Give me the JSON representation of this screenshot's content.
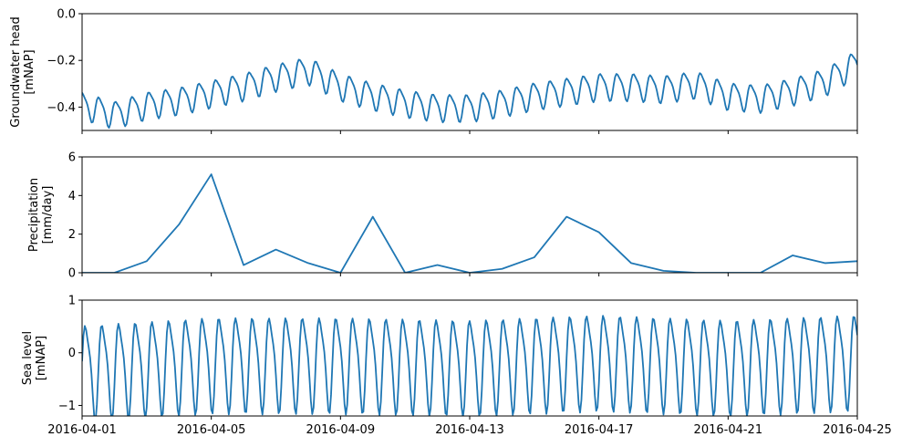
{
  "x_ticks": [
    "2016-04-01",
    "2016-04-05",
    "2016-04-09",
    "2016-04-13",
    "2016-04-17",
    "2016-04-21",
    "2016-04-25"
  ],
  "chart_data": [
    {
      "type": "line",
      "name": "groundwater",
      "ylabel_lines": [
        "Groundwater head",
        "[mNAP]"
      ],
      "xlim": [
        "2016-04-01",
        "2016-04-25"
      ],
      "ylim": [
        -0.5,
        0.0
      ],
      "yticks": [
        0.0,
        -0.2,
        -0.4
      ],
      "ytick_labels": [
        "0.0",
        "−0.2",
        "−0.4"
      ],
      "color": "#1f77b4",
      "tidal_model": {
        "period_hours": 12.42,
        "amplitude": 0.055,
        "samples_per_day": 24,
        "phase_offset": 1.2,
        "mean_curve": {
          "dates": [
            "2016-04-01",
            "2016-04-02",
            "2016-04-03",
            "2016-04-04",
            "2016-04-05",
            "2016-04-06",
            "2016-04-07",
            "2016-04-08",
            "2016-04-09",
            "2016-04-10",
            "2016-04-11",
            "2016-04-12",
            "2016-04-13",
            "2016-04-14",
            "2016-04-15",
            "2016-04-16",
            "2016-04-17",
            "2016-04-18",
            "2016-04-19",
            "2016-04-20",
            "2016-04-21",
            "2016-04-22",
            "2016-04-23",
            "2016-04-24",
            "2016-04-25"
          ],
          "values": [
            -0.39,
            -0.43,
            -0.39,
            -0.37,
            -0.34,
            -0.31,
            -0.27,
            -0.24,
            -0.31,
            -0.35,
            -0.38,
            -0.4,
            -0.4,
            -0.38,
            -0.35,
            -0.33,
            -0.31,
            -0.31,
            -0.32,
            -0.3,
            -0.35,
            -0.36,
            -0.33,
            -0.29,
            -0.21
          ]
        }
      }
    },
    {
      "type": "line",
      "name": "precipitation",
      "ylabel_lines": [
        "Precipitation",
        "[mm/day]"
      ],
      "xlim": [
        "2016-04-01",
        "2016-04-25"
      ],
      "ylim": [
        0,
        6
      ],
      "yticks": [
        0,
        2,
        4,
        6
      ],
      "ytick_labels": [
        "0",
        "2",
        "4",
        "6"
      ],
      "color": "#1f77b4",
      "x": [
        "2016-04-01",
        "2016-04-02",
        "2016-04-03",
        "2016-04-04",
        "2016-04-05",
        "2016-04-06",
        "2016-04-07",
        "2016-04-08",
        "2016-04-09",
        "2016-04-10",
        "2016-04-11",
        "2016-04-12",
        "2016-04-13",
        "2016-04-14",
        "2016-04-15",
        "2016-04-16",
        "2016-04-17",
        "2016-04-18",
        "2016-04-19",
        "2016-04-20",
        "2016-04-21",
        "2016-04-22",
        "2016-04-23",
        "2016-04-24",
        "2016-04-25"
      ],
      "values": [
        0.0,
        0.0,
        0.6,
        2.5,
        5.1,
        0.4,
        1.2,
        0.5,
        0.0,
        2.9,
        0.0,
        0.4,
        0.0,
        0.2,
        0.8,
        2.9,
        2.1,
        0.5,
        0.1,
        0.0,
        0.0,
        0.0,
        0.9,
        0.5,
        0.6
      ]
    },
    {
      "type": "line",
      "name": "sea_level",
      "ylabel_lines": [
        "Sea level",
        "[mNAP]"
      ],
      "xlim": [
        "2016-04-01",
        "2016-04-25"
      ],
      "ylim": [
        -1.2,
        1.0
      ],
      "yticks": [
        1,
        0,
        -1
      ],
      "ytick_labels": [
        "1",
        "0",
        "−1"
      ],
      "color": "#1f77b4",
      "tidal_model": {
        "period_hours": 12.42,
        "amplitude": 0.85,
        "samples_per_day": 24,
        "phase_offset": 0.0,
        "mean_curve": {
          "dates": [
            "2016-04-01",
            "2016-04-05",
            "2016-04-09",
            "2016-04-13",
            "2016-04-17",
            "2016-04-21",
            "2016-04-25"
          ],
          "values": [
            -0.3,
            -0.15,
            -0.15,
            -0.2,
            -0.1,
            -0.2,
            -0.1
          ]
        }
      }
    }
  ]
}
